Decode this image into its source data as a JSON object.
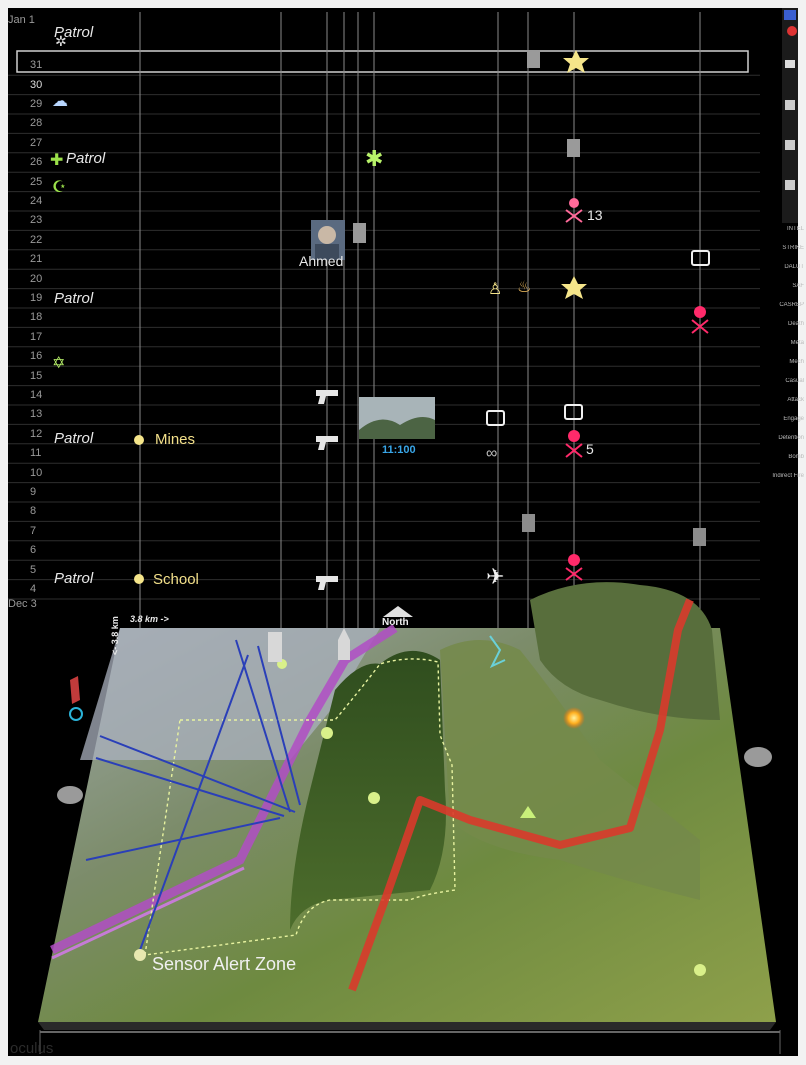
{
  "app": {
    "name": "oculus"
  },
  "timeline": {
    "start_label": "Dec 3",
    "end_label": "Jan 1",
    "days": [
      "4",
      "5",
      "6",
      "7",
      "8",
      "9",
      "10",
      "11",
      "12",
      "13",
      "14",
      "15",
      "16",
      "17",
      "18",
      "19",
      "20",
      "21",
      "22",
      "23",
      "24",
      "25",
      "26",
      "27",
      "28",
      "29",
      "30",
      "31"
    ],
    "selected_day": "30"
  },
  "labels": {
    "patrol": "Patrol",
    "mines": "Mines",
    "school": "School",
    "person": "Ahmed",
    "count_13": "13",
    "count_5": "5",
    "photo_caption": "11:100"
  },
  "map": {
    "scale": "3.8 km ->",
    "scale_side": "<- 3.8 km",
    "north": "North",
    "zone": "Sensor Alert Zone"
  },
  "right_panel": {
    "items": [
      "INTEL",
      "STRIKE",
      "DALUT",
      "SAF",
      "CASREP",
      "Death",
      "Meta",
      "Mech",
      "Casual",
      "Attack",
      "Engage",
      "Detention",
      "Bomb",
      "Indirect Fire"
    ]
  },
  "colors": {
    "background": "#000000",
    "route": "#d93a2b",
    "highway": "#b04ec4",
    "sensor": "#2a3fb8",
    "casualty": "#ff2a6a",
    "event": "#f5e58a",
    "hazard": "#b8f26a"
  }
}
